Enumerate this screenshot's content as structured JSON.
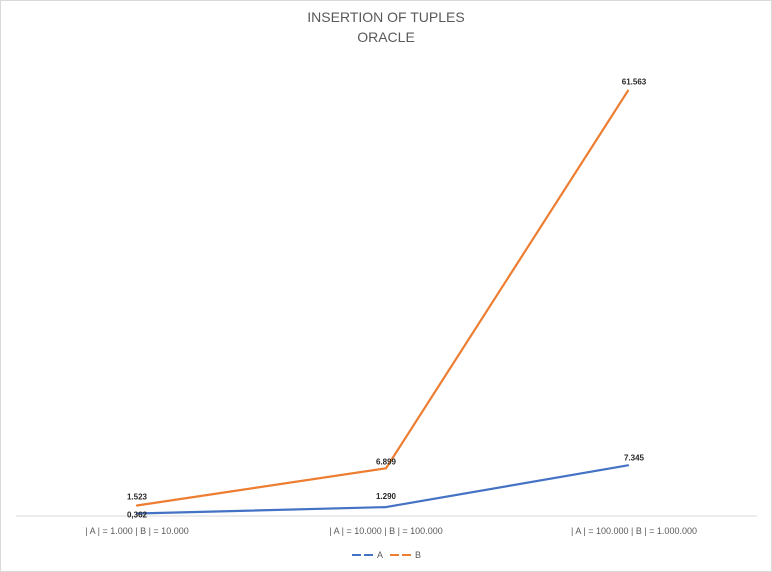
{
  "chart_data": {
    "type": "line",
    "title": [
      "INSERTION OF TUPLES",
      "ORACLE"
    ],
    "categories": [
      "| A |  = 1.000 | B | = 10.000",
      "| A |  = 10.000 | B | = 100.000",
      "| A |  = 100.000 | B | = 1.000.000"
    ],
    "series": [
      {
        "name": "A",
        "color": "#4472c4",
        "values": [
          0.362,
          1.29,
          7.345
        ],
        "labels": [
          "0,362",
          "1.290",
          "7.345"
        ]
      },
      {
        "name": "B",
        "color": "#ed7d31",
        "values": [
          1.523,
          6.899,
          61.563
        ],
        "labels": [
          "1.523",
          "6.899",
          "61.563"
        ]
      }
    ],
    "ylim": [
      0,
      66
    ],
    "grid": false,
    "legend": "bottom",
    "xlabel": "",
    "ylabel": ""
  }
}
